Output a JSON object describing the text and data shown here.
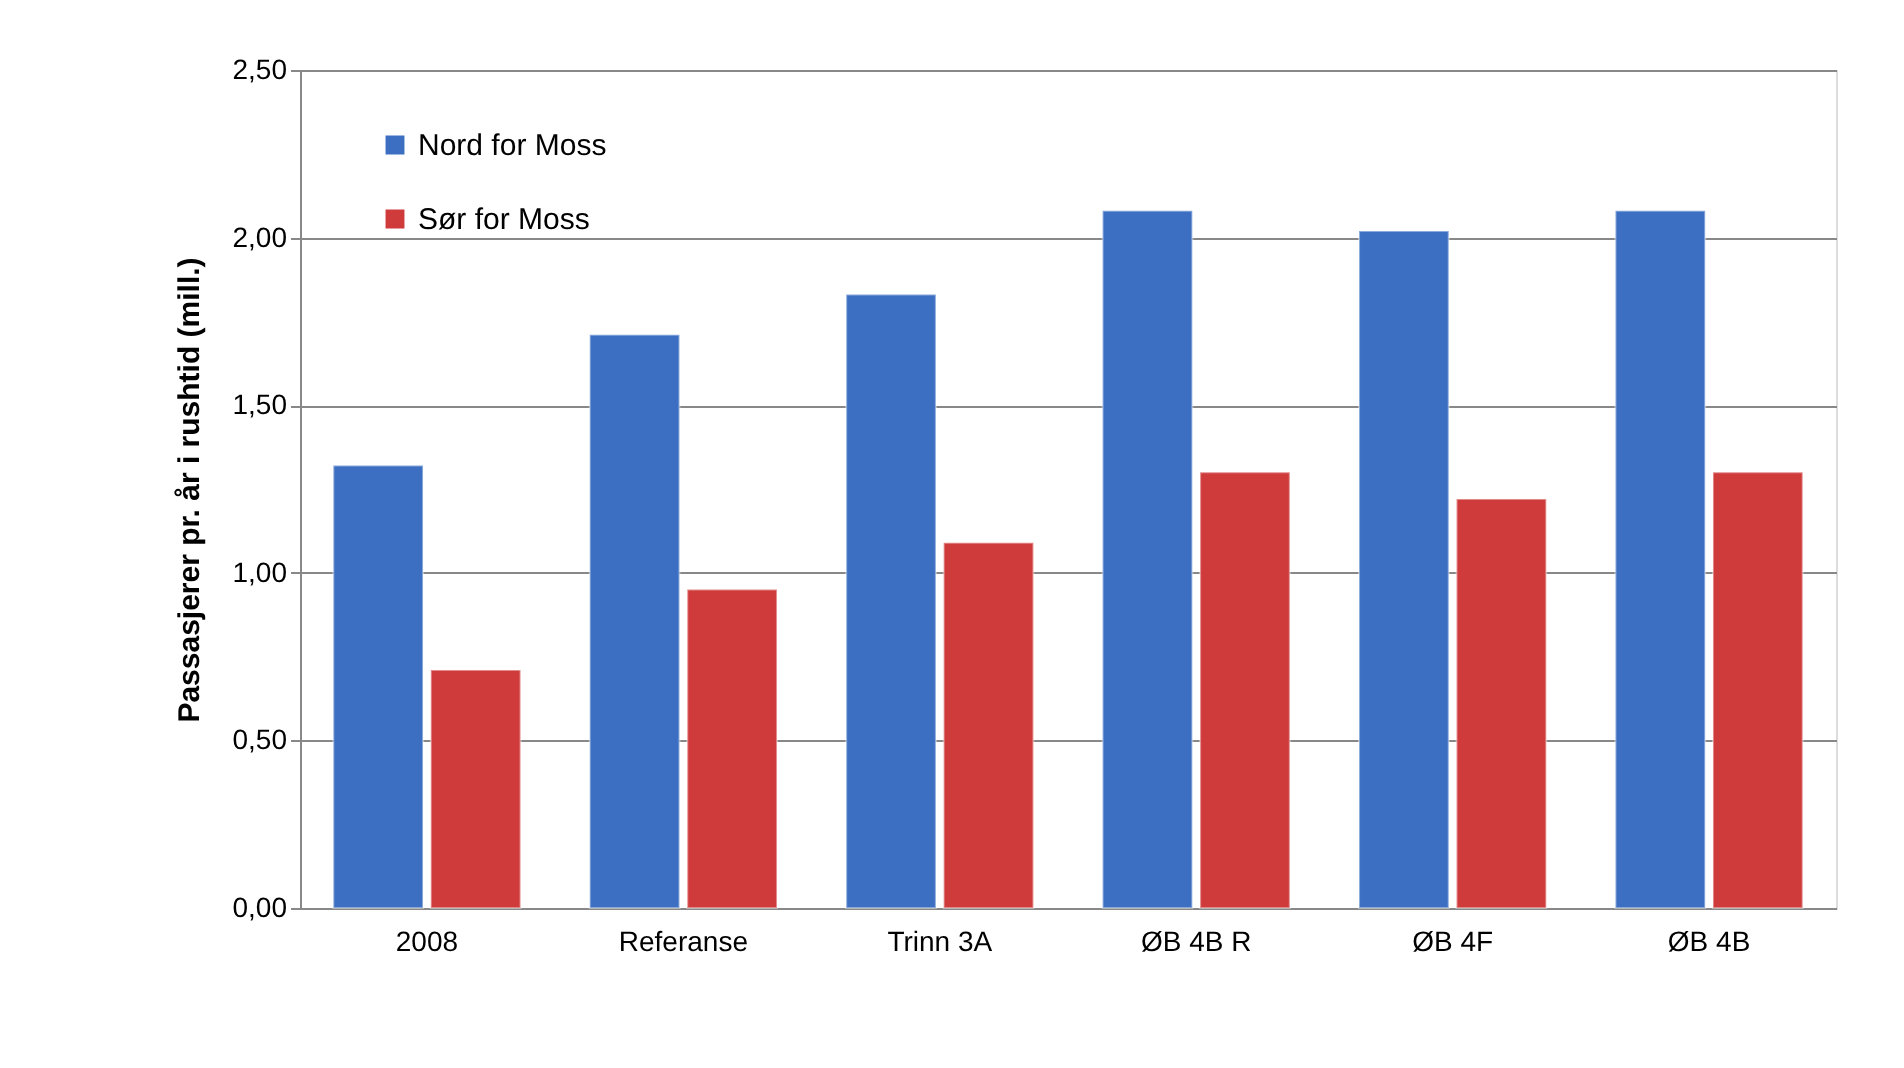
{
  "chart_data": {
    "type": "bar",
    "ylabel": "Passasjerer pr. år i rushtid (mill.)",
    "categories": [
      "2008",
      "Referanse",
      "Trinn 3A",
      "ØB 4B R",
      "ØB 4F",
      "ØB 4B"
    ],
    "series": [
      {
        "name": "Nord for Moss",
        "color": "#3c6fc2",
        "values": [
          1.32,
          1.71,
          1.83,
          2.08,
          2.02,
          2.08
        ]
      },
      {
        "name": "Sør for Moss",
        "color": "#cf3b3b",
        "values": [
          0.71,
          0.95,
          1.09,
          1.3,
          1.22,
          1.3
        ]
      }
    ],
    "ylim": [
      0,
      2.5
    ],
    "yticks": [
      {
        "value": 0,
        "label": "0,00"
      },
      {
        "value": 0.5,
        "label": "0,50"
      },
      {
        "value": 1,
        "label": "1,00"
      },
      {
        "value": 1.5,
        "label": "1,50"
      },
      {
        "value": 2,
        "label": "2,00"
      },
      {
        "value": 2.5,
        "label": "2,50"
      }
    ],
    "grid": "y",
    "legend": "top left"
  }
}
